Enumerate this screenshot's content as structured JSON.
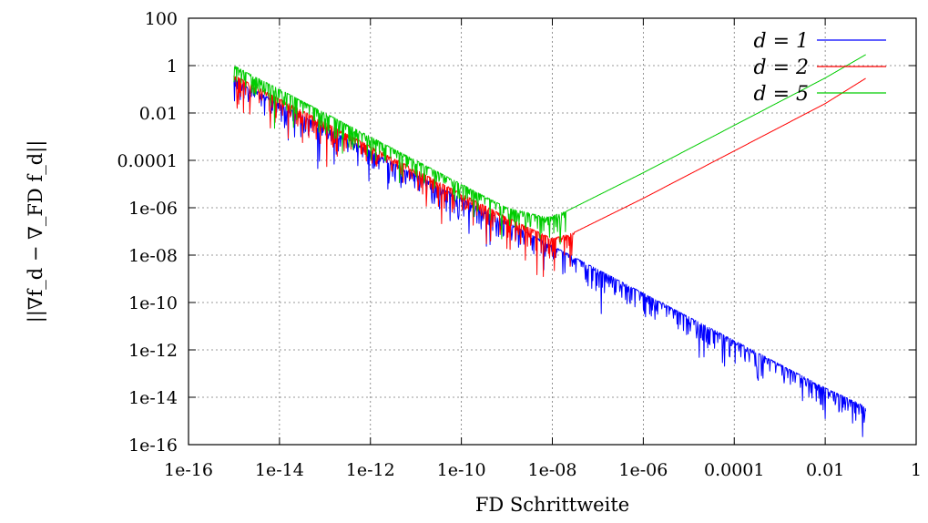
{
  "chart_data": {
    "type": "line",
    "xscale": "log",
    "yscale": "log",
    "xlabel": "FD Schrittweite",
    "ylabel": "||∇f_d − ∇_FD f_d||",
    "xlim": [
      1e-16,
      1
    ],
    "ylim": [
      1e-16,
      100
    ],
    "grid": true,
    "legend_position": "top-right",
    "x_ticks": [
      1e-16,
      1e-14,
      1e-12,
      1e-10,
      1e-08,
      1e-06,
      0.0001,
      0.01,
      1
    ],
    "x_tick_labels": [
      "1e-16",
      "1e-14",
      "1e-12",
      "1e-10",
      "1e-08",
      "1e-06",
      "0.0001",
      "0.01",
      "1"
    ],
    "y_ticks": [
      1e-16,
      1e-14,
      1e-12,
      1e-10,
      1e-08,
      1e-06,
      0.0001,
      0.01,
      1,
      100
    ],
    "y_tick_labels": [
      "1e-16",
      "1e-14",
      "1e-12",
      "1e-10",
      "1e-08",
      "1e-06",
      "0.0001",
      "0.01",
      "1",
      "100"
    ],
    "series": [
      {
        "name": "d = 1",
        "color": "#0000ff",
        "x": [
          1e-15,
          1e-14,
          1e-13,
          1e-12,
          1e-11,
          1e-10,
          1e-09,
          1e-08,
          1e-07,
          1e-06,
          1e-05,
          0.0001,
          0.001,
          0.01,
          0.08
        ],
        "y": [
          0.3,
          0.025,
          0.0025,
          0.00025,
          2.5e-05,
          2.5e-06,
          2.5e-07,
          2.5e-08,
          2.5e-09,
          2.5e-10,
          2.5e-11,
          2.5e-12,
          2.5e-13,
          2.5e-14,
          4e-15
        ]
      },
      {
        "name": "d = 2",
        "color": "#ff0000",
        "x": [
          1e-15,
          1e-14,
          1e-13,
          1e-12,
          1e-11,
          1e-10,
          1e-09,
          1e-08,
          3e-08,
          1e-06,
          0.0001,
          0.01,
          0.08
        ],
        "y": [
          0.4,
          0.04,
          0.004,
          0.0004,
          4e-05,
          4e-06,
          4e-07,
          5e-08,
          9e-08,
          2.5e-06,
          0.00025,
          0.025,
          0.3
        ]
      },
      {
        "name": "d = 5",
        "color": "#00cc00",
        "x": [
          1e-15,
          1e-14,
          1e-13,
          1e-12,
          1e-11,
          1e-10,
          1e-09,
          8e-09,
          2e-08,
          1e-06,
          0.0001,
          0.01,
          0.08
        ],
        "y": [
          1,
          0.1,
          0.01,
          0.001,
          0.0001,
          1e-05,
          1e-06,
          4e-07,
          7e-07,
          3e-05,
          0.003,
          0.3,
          3
        ]
      }
    ]
  }
}
